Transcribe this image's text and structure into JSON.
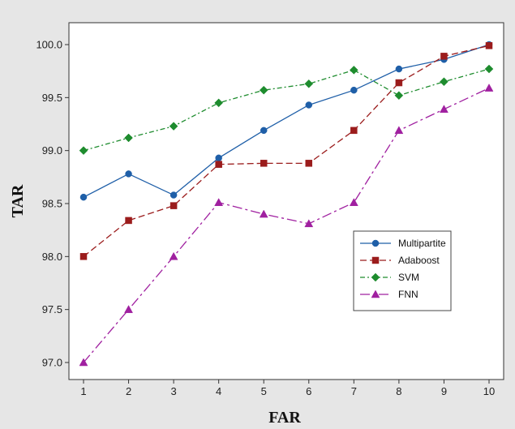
{
  "chart_data": {
    "type": "line",
    "title": "",
    "xlabel": "FAR",
    "ylabel": "TAR",
    "x": [
      1,
      2,
      3,
      4,
      5,
      6,
      7,
      8,
      9,
      10
    ],
    "xticks": [
      "1",
      "2",
      "3",
      "4",
      "5",
      "6",
      "7",
      "8",
      "9",
      "10"
    ],
    "yticks": [
      "97.0",
      "97.5",
      "98.0",
      "98.5",
      "99.0",
      "99.5",
      "100.0"
    ],
    "xlim": [
      1,
      10
    ],
    "ylim": [
      97.0,
      100.0
    ],
    "grid": false,
    "legend_position": "lower-right",
    "series": [
      {
        "name": "Multipartite",
        "color": "#1f5fa8",
        "dash": "solid",
        "marker": "circle",
        "values": [
          98.56,
          98.78,
          98.58,
          98.93,
          99.19,
          99.43,
          99.57,
          99.77,
          99.86,
          100.0
        ]
      },
      {
        "name": "Adaboost",
        "color": "#9b1c1c",
        "dash": "dashed",
        "marker": "square",
        "values": [
          98.0,
          98.34,
          98.48,
          98.87,
          98.88,
          98.88,
          99.19,
          99.64,
          99.89,
          99.99
        ]
      },
      {
        "name": "SVM",
        "color": "#1e8c2e",
        "dash": "dash-dot-short",
        "marker": "diamond",
        "values": [
          99.0,
          99.12,
          99.23,
          99.45,
          99.57,
          99.63,
          99.76,
          99.52,
          99.65,
          99.77
        ]
      },
      {
        "name": "FNN",
        "color": "#a020a0",
        "dash": "dash-dot-long",
        "marker": "triangle",
        "values": [
          97.0,
          97.5,
          98.0,
          98.51,
          98.4,
          98.31,
          98.51,
          99.19,
          99.39,
          99.59
        ]
      }
    ]
  }
}
